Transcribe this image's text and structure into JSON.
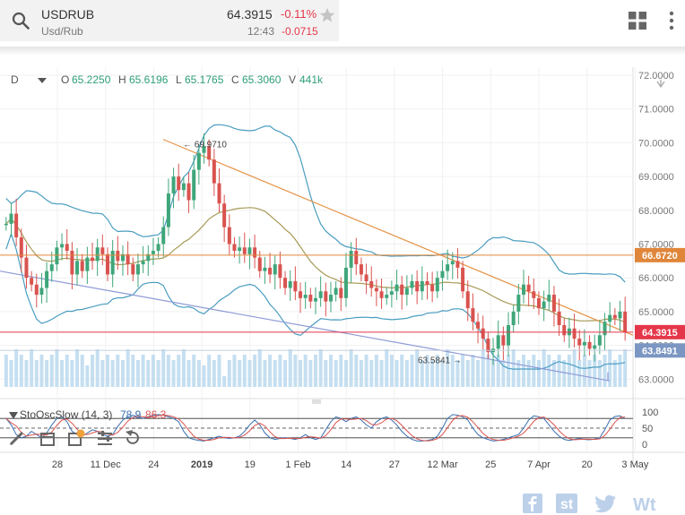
{
  "header": {
    "symbol": "USDRUB",
    "subtitle": "Usd/Rub",
    "price": "64.3915",
    "change_pct": "-0.11%",
    "time": "12:43",
    "change_abs": "-0.0715",
    "icons": [
      "search-icon",
      "star-icon",
      "grid-icon",
      "more-vert-icon"
    ]
  },
  "ohlc_bar": {
    "interval": "D",
    "o_label": "O",
    "o_value": "65.2250",
    "h_label": "H",
    "h_value": "65.6196",
    "l_label": "L",
    "l_value": "65.1765",
    "c_label": "C",
    "c_value": "65.3060",
    "v_label": "V",
    "v_value": "441k"
  },
  "colors": {
    "up": "#3fa67a",
    "down": "#d9534f",
    "boll": "#4a9dc0",
    "ma": "#a89a57",
    "trend": "#e6944a",
    "support": "#8d9ad6",
    "level_orange": "#e0863a",
    "level_red": "#e5374a",
    "level_blue": "#7b96c2"
  },
  "stochastic": {
    "label": "StoOscSlow (14, 3)",
    "k_value": "78.9",
    "d_value": "86.3",
    "axis": [
      "100",
      "50",
      "0"
    ]
  },
  "chart_data": {
    "type": "candlestick",
    "y_ticks": [
      "72.0000",
      "71.0000",
      "70.0000",
      "69.0000",
      "68.0000",
      "67.0000",
      "66.0000",
      "65.0000",
      "64.0000",
      "63.0000"
    ],
    "ylim": [
      62.8,
      72.0
    ],
    "x_ticks": [
      "28",
      "11 Dec",
      "24",
      "2019",
      "19",
      "1 Feb",
      "14",
      "27",
      "12 Mar",
      "25",
      "7 Apr",
      "20",
      "3 May"
    ],
    "price_labels": [
      {
        "value": 66.672,
        "text": "66.6720",
        "kind": "orange"
      },
      {
        "value": 64.3915,
        "text": "64.3915",
        "kind": "red"
      },
      {
        "value": 63.8491,
        "text": "63.8491",
        "kind": "blue"
      }
    ],
    "annotations": [
      {
        "text": "69.9710",
        "value": 69.971,
        "kind": "high"
      },
      {
        "text": "63.5841",
        "value": 63.5841,
        "kind": "low"
      }
    ],
    "closes": [
      67.6,
      67.9,
      67.2,
      66.6,
      66.0,
      65.8,
      65.5,
      65.7,
      66.2,
      66.4,
      66.9,
      67.0,
      66.8,
      66.1,
      66.5,
      66.2,
      66.6,
      66.5,
      66.9,
      66.7,
      66.1,
      66.8,
      66.5,
      66.7,
      66.4,
      66.1,
      66.4,
      66.5,
      66.7,
      66.8,
      67.0,
      67.5,
      68.5,
      69.0,
      68.6,
      68.8,
      68.3,
      69.2,
      69.7,
      69.9,
      69.5,
      68.8,
      68.2,
      67.5,
      67.0,
      66.8,
      66.9,
      66.7,
      66.9,
      66.6,
      66.2,
      66.3,
      66.1,
      66.4,
      66.0,
      65.7,
      65.9,
      65.6,
      65.4,
      65.5,
      65.3,
      65.4,
      65.6,
      65.3,
      65.5,
      65.7,
      65.4,
      66.3,
      66.8,
      66.4,
      66.1,
      65.9,
      65.7,
      65.6,
      65.4,
      65.5,
      65.6,
      65.8,
      65.5,
      65.7,
      65.9,
      65.6,
      65.9,
      65.8,
      65.6,
      66.0,
      66.2,
      66.4,
      66.5,
      66.3,
      65.6,
      65.1,
      64.7,
      64.5,
      64.2,
      63.8,
      63.9,
      64.3,
      64.0,
      64.6,
      65.0,
      65.5,
      65.8,
      65.6,
      65.4,
      65.1,
      65.3,
      65.5,
      65.0,
      64.6,
      64.3,
      64.5,
      64.2,
      64.0,
      64.1,
      63.9,
      64.0,
      64.3,
      64.7,
      64.9,
      64.8,
      65.0,
      64.4
    ],
    "volumes": [
      0.6,
      0.5,
      0.7,
      0.6,
      0.5,
      0.7,
      0.5,
      0.6,
      0.5,
      0.6,
      0.7,
      0.5,
      0.6,
      0.5,
      0.7,
      0.6,
      0.4,
      0.6,
      0.7,
      0.5,
      0.6,
      0.5,
      0.6,
      0.5,
      0.7,
      0.6,
      0.5,
      0.6,
      0.5,
      0.6,
      0.5,
      0.7,
      0.6,
      0.5,
      0.6,
      0.7,
      0.5,
      0.6,
      0.5,
      0.4,
      0.6,
      0.5,
      0.6,
      0.2,
      0.5,
      0.6,
      0.5,
      0.6,
      0.5,
      0.6,
      0.7,
      0.5,
      0.6,
      0.5,
      0.6,
      0.5,
      0.7,
      0.6,
      0.5,
      0.6,
      0.5,
      0.6,
      0.7,
      0.5,
      0.6,
      0.5,
      0.6,
      0.5,
      0.7,
      0.6,
      0.5,
      0.6,
      0.5,
      0.6,
      0.5,
      0.7,
      0.6,
      0.5,
      0.6,
      0.5,
      0.6,
      0.7,
      0.5,
      0.6,
      0.5,
      0.6,
      0.5,
      0.7,
      0.6,
      0.5,
      0.6,
      0.5,
      0.6,
      0.5,
      0.7,
      0.6,
      0.5,
      0.6,
      0.5,
      0.6,
      0.7,
      0.5,
      0.6,
      0.5,
      0.6,
      0.5,
      0.7,
      0.6,
      0.5,
      0.6,
      0.5,
      0.6,
      0.7,
      0.5,
      0.6,
      0.5,
      0.6,
      0.5,
      0.6,
      0.7,
      0.5,
      0.6,
      0.7
    ],
    "stoch_k": [
      80,
      60,
      30,
      20,
      25,
      40,
      30,
      20,
      35,
      60,
      80,
      85,
      70,
      40,
      30,
      25,
      35,
      45,
      40,
      30,
      25,
      30,
      55,
      75,
      85,
      90,
      85,
      80,
      85,
      90,
      92,
      90,
      85,
      80,
      70,
      40,
      20,
      15,
      12,
      10,
      15,
      20,
      25,
      20,
      18,
      20,
      25,
      40,
      60,
      75,
      60,
      35,
      20,
      15,
      18,
      20,
      18,
      15,
      20,
      30,
      20,
      15,
      20,
      45,
      70,
      85,
      80,
      70,
      80,
      85,
      75,
      60,
      50,
      70,
      80,
      85,
      75,
      60,
      40,
      25,
      15,
      10,
      10,
      12,
      15,
      25,
      50,
      80,
      92,
      90,
      85,
      75,
      50,
      30,
      20,
      15,
      10,
      12,
      15,
      20,
      25,
      30,
      50,
      75,
      88,
      85,
      80,
      60,
      40,
      25,
      15,
      12,
      15,
      18,
      15,
      14,
      16,
      20,
      45,
      75,
      86,
      88,
      79
    ]
  },
  "social": [
    "facebook-icon",
    "stocktwits-icon",
    "twitter-icon",
    "wt-icon"
  ]
}
